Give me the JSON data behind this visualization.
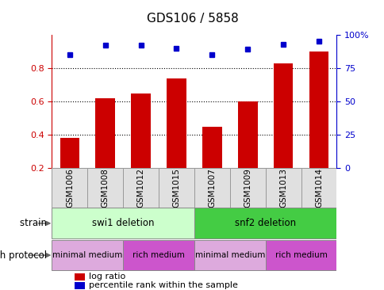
{
  "title": "GDS106 / 5858",
  "samples": [
    "GSM1006",
    "GSM1008",
    "GSM1012",
    "GSM1015",
    "GSM1007",
    "GSM1009",
    "GSM1013",
    "GSM1014"
  ],
  "log_ratio": [
    0.38,
    0.62,
    0.65,
    0.74,
    0.45,
    0.6,
    0.83,
    0.9
  ],
  "percentile_rank": [
    85,
    92,
    92,
    90,
    85,
    89,
    93,
    95
  ],
  "bar_color": "#cc0000",
  "dot_color": "#0000cc",
  "ylim_left": [
    0.2,
    1.0
  ],
  "ylim_right": [
    0,
    100
  ],
  "yticks_left": [
    0.2,
    0.4,
    0.6,
    0.8
  ],
  "yticks_right": [
    0,
    25,
    50,
    75,
    100
  ],
  "grid_lines": [
    0.4,
    0.6,
    0.8
  ],
  "strain_groups": [
    {
      "label": "swi1 deletion",
      "start": 0,
      "end": 4,
      "color": "#ccffcc"
    },
    {
      "label": "snf2 deletion",
      "start": 4,
      "end": 8,
      "color": "#44cc44"
    }
  ],
  "protocol_groups": [
    {
      "label": "minimal medium",
      "start": 0,
      "end": 2,
      "color": "#ddaadd"
    },
    {
      "label": "rich medium",
      "start": 2,
      "end": 4,
      "color": "#cc55cc"
    },
    {
      "label": "minimal medium",
      "start": 4,
      "end": 6,
      "color": "#ddaadd"
    },
    {
      "label": "rich medium",
      "start": 6,
      "end": 8,
      "color": "#cc55cc"
    }
  ],
  "strain_label": "strain",
  "protocol_label": "growth protocol",
  "legend_log_ratio": "log ratio",
  "legend_percentile": "percentile rank within the sample",
  "title_fontsize": 11,
  "axis_label_color_left": "#cc0000",
  "axis_label_color_right": "#0000cc",
  "xlabel_cell_color": "#e0e0e0",
  "xlabel_cell_border": "#999999",
  "bar_width": 0.55
}
